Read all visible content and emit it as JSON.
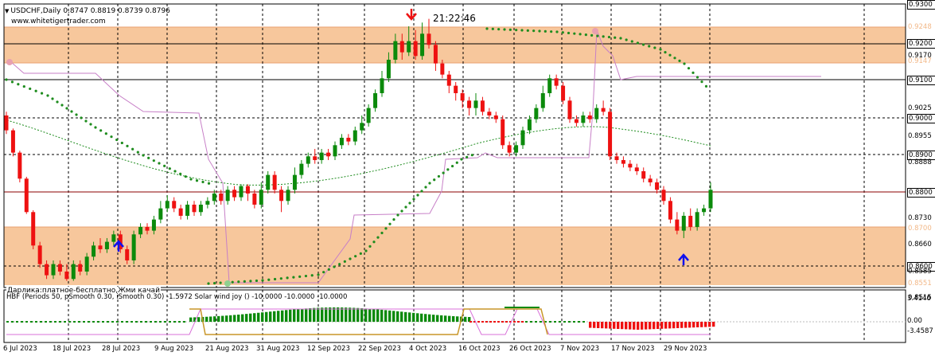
{
  "chart": {
    "header": "USDCHF,Daily  0.8747 0.8819 0.8739 0.8796",
    "symbol_menu_arrow": "down-triangle-icon",
    "website": "www.whitetigertrader.com",
    "clock": "21:22:46",
    "zone_caption": "Дарлика:платное-бесплатно,Жми качай"
  },
  "price_axis": {
    "labels": [
      "0.9300",
      "0.9248",
      "0.9200",
      "0.9170",
      "0.9147",
      "0.9100",
      "0.9025",
      "0.9000",
      "0.8955",
      "0.8900",
      "0.8888",
      "0.8800",
      "0.8730",
      "0.8700",
      "0.8660",
      "0.8600",
      "0.8585",
      "0.8551",
      "0.8515"
    ],
    "boxed": [
      "0.9300",
      "0.9200",
      "0.9100",
      "0.9000",
      "0.8900",
      "0.8800",
      "0.8600"
    ],
    "orange": [
      "0.9248",
      "0.9147",
      "0.8700",
      "0.8551"
    ]
  },
  "indicator": {
    "label": "HBF  (Periods 50, pSmooth 0.30, iSmooth 0.30)  -1.5972  Solar wind joy ()  -10.0000 -10.0000 -10.0000",
    "scale": [
      "3.4146",
      "0.00",
      "-3.4587"
    ]
  },
  "time_axis": {
    "labels": [
      "6 Jul 2023",
      "18 Jul 2023",
      "28 Jul 2023",
      "9 Aug 2023",
      "21 Aug 2023",
      "31 Aug 2023",
      "12 Sep 2023",
      "22 Sep 2023",
      "4 Oct 2023",
      "16 Oct 2023",
      "26 Oct 2023",
      "7 Nov 2023",
      "17 Nov 2023",
      "29 Nov 2023"
    ]
  },
  "colors": {
    "bull": "#0b8a0b",
    "bear": "#ee1111",
    "zone": "#f7c79c",
    "psar": "#1e8c1e",
    "lilac": "#c77fc7",
    "arrow_up": "#1010ee",
    "arrow_down": "#ee1111"
  }
}
